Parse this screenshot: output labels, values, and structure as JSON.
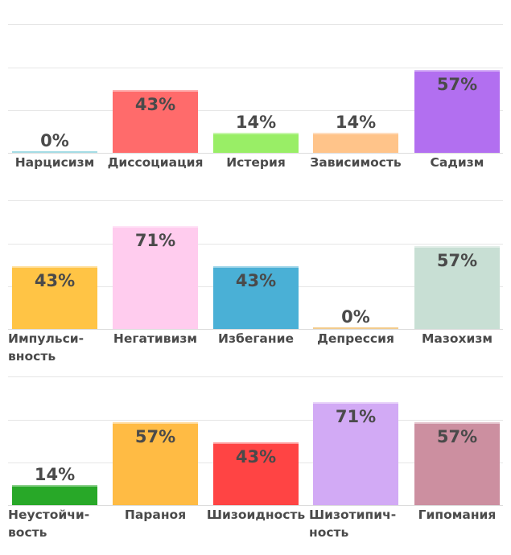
{
  "chart_data": [
    {
      "type": "bar",
      "ylim": [
        0,
        100
      ],
      "categories": [
        "Нарцисизм",
        "Диссоциация",
        "Истерия",
        "Зависимость",
        "Садизм"
      ],
      "values": [
        0,
        43,
        14,
        14,
        57
      ],
      "labels": [
        "0%",
        "43%",
        "14%",
        "14%",
        "57%"
      ],
      "colors": [
        "#5bc0cf",
        "#ff6b6b",
        "#99ee66",
        "#ffc48a",
        "#b26ff0"
      ]
    },
    {
      "type": "bar",
      "ylim": [
        0,
        100
      ],
      "categories": [
        "Импульси-\nвность",
        "Негативизм",
        "Избегание",
        "Депрессия",
        "Мазохизм"
      ],
      "values": [
        43,
        71,
        43,
        0,
        57
      ],
      "labels": [
        "43%",
        "71%",
        "43%",
        "0%",
        "57%"
      ],
      "colors": [
        "#ffc445",
        "#ffccee",
        "#4ab0d6",
        "#e8a030",
        "#c8dfd4"
      ]
    },
    {
      "type": "bar",
      "ylim": [
        0,
        100
      ],
      "categories": [
        "Неустойчи-\nвость",
        "Параноя",
        "Шизоидность",
        "Шизотипич-\nность",
        "Гипомания"
      ],
      "values": [
        14,
        57,
        43,
        71,
        57
      ],
      "labels": [
        "14%",
        "57%",
        "43%",
        "71%",
        "57%"
      ],
      "colors": [
        "#28a828",
        "#ffbb44",
        "#ff4444",
        "#d2aaf5",
        "#cc8fa0"
      ]
    }
  ]
}
